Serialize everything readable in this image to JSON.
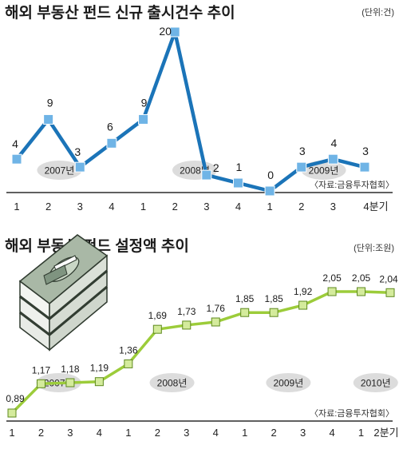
{
  "chart_data": [
    {
      "type": "line",
      "title": "해외 부동산 펀드 신규 출시건수 추이",
      "unit": "(단위:건)",
      "source": "〈자료:금융투자협회〉",
      "categories": [
        "1",
        "2",
        "3",
        "4",
        "1",
        "2",
        "3",
        "4",
        "1",
        "2",
        "3",
        "4분기"
      ],
      "values": [
        4,
        9,
        3,
        6,
        9,
        20,
        2,
        1,
        0,
        3,
        4,
        3
      ],
      "value_labels": [
        "4",
        "9",
        "3",
        "6",
        "9",
        "20",
        "2",
        "1",
        "0",
        "3",
        "4",
        "3"
      ],
      "year_labels": [
        {
          "label": "2007년",
          "center": 1.5
        },
        {
          "label": "2008년",
          "center": 5.5
        },
        {
          "label": "2009년",
          "center": 9.5
        }
      ],
      "ylim": [
        0,
        20
      ],
      "line_color": "#1b74b8",
      "marker_color": "#6fb4e6"
    },
    {
      "type": "line",
      "title": "해외 부동산 펀드 설정액 추이",
      "unit": "(단위:조원)",
      "source": "〈자료:금융투자협회〉",
      "categories": [
        "1",
        "2",
        "3",
        "4",
        "1",
        "2",
        "3",
        "4",
        "1",
        "2",
        "3",
        "4",
        "1",
        "2분기"
      ],
      "values": [
        0.89,
        1.17,
        1.18,
        1.19,
        1.36,
        1.69,
        1.73,
        1.76,
        1.85,
        1.85,
        1.92,
        2.05,
        2.05,
        2.04
      ],
      "value_labels": [
        "0,89",
        "1,17",
        "1,18",
        "1,19",
        "1,36",
        "1,69",
        "1,73",
        "1,76",
        "1,85",
        "1,85",
        "1,92",
        "2,05",
        "2,05",
        "2,04"
      ],
      "year_labels": [
        {
          "label": "2007년",
          "center": 1.5
        },
        {
          "label": "2008년",
          "center": 5.5
        },
        {
          "label": "2009년",
          "center": 9.5
        },
        {
          "label": "2010년",
          "center": 12.5
        }
      ],
      "ylim": [
        0.89,
        2.05
      ],
      "line_color": "#9ccc3a",
      "marker_color": "#d4eb9c"
    }
  ]
}
